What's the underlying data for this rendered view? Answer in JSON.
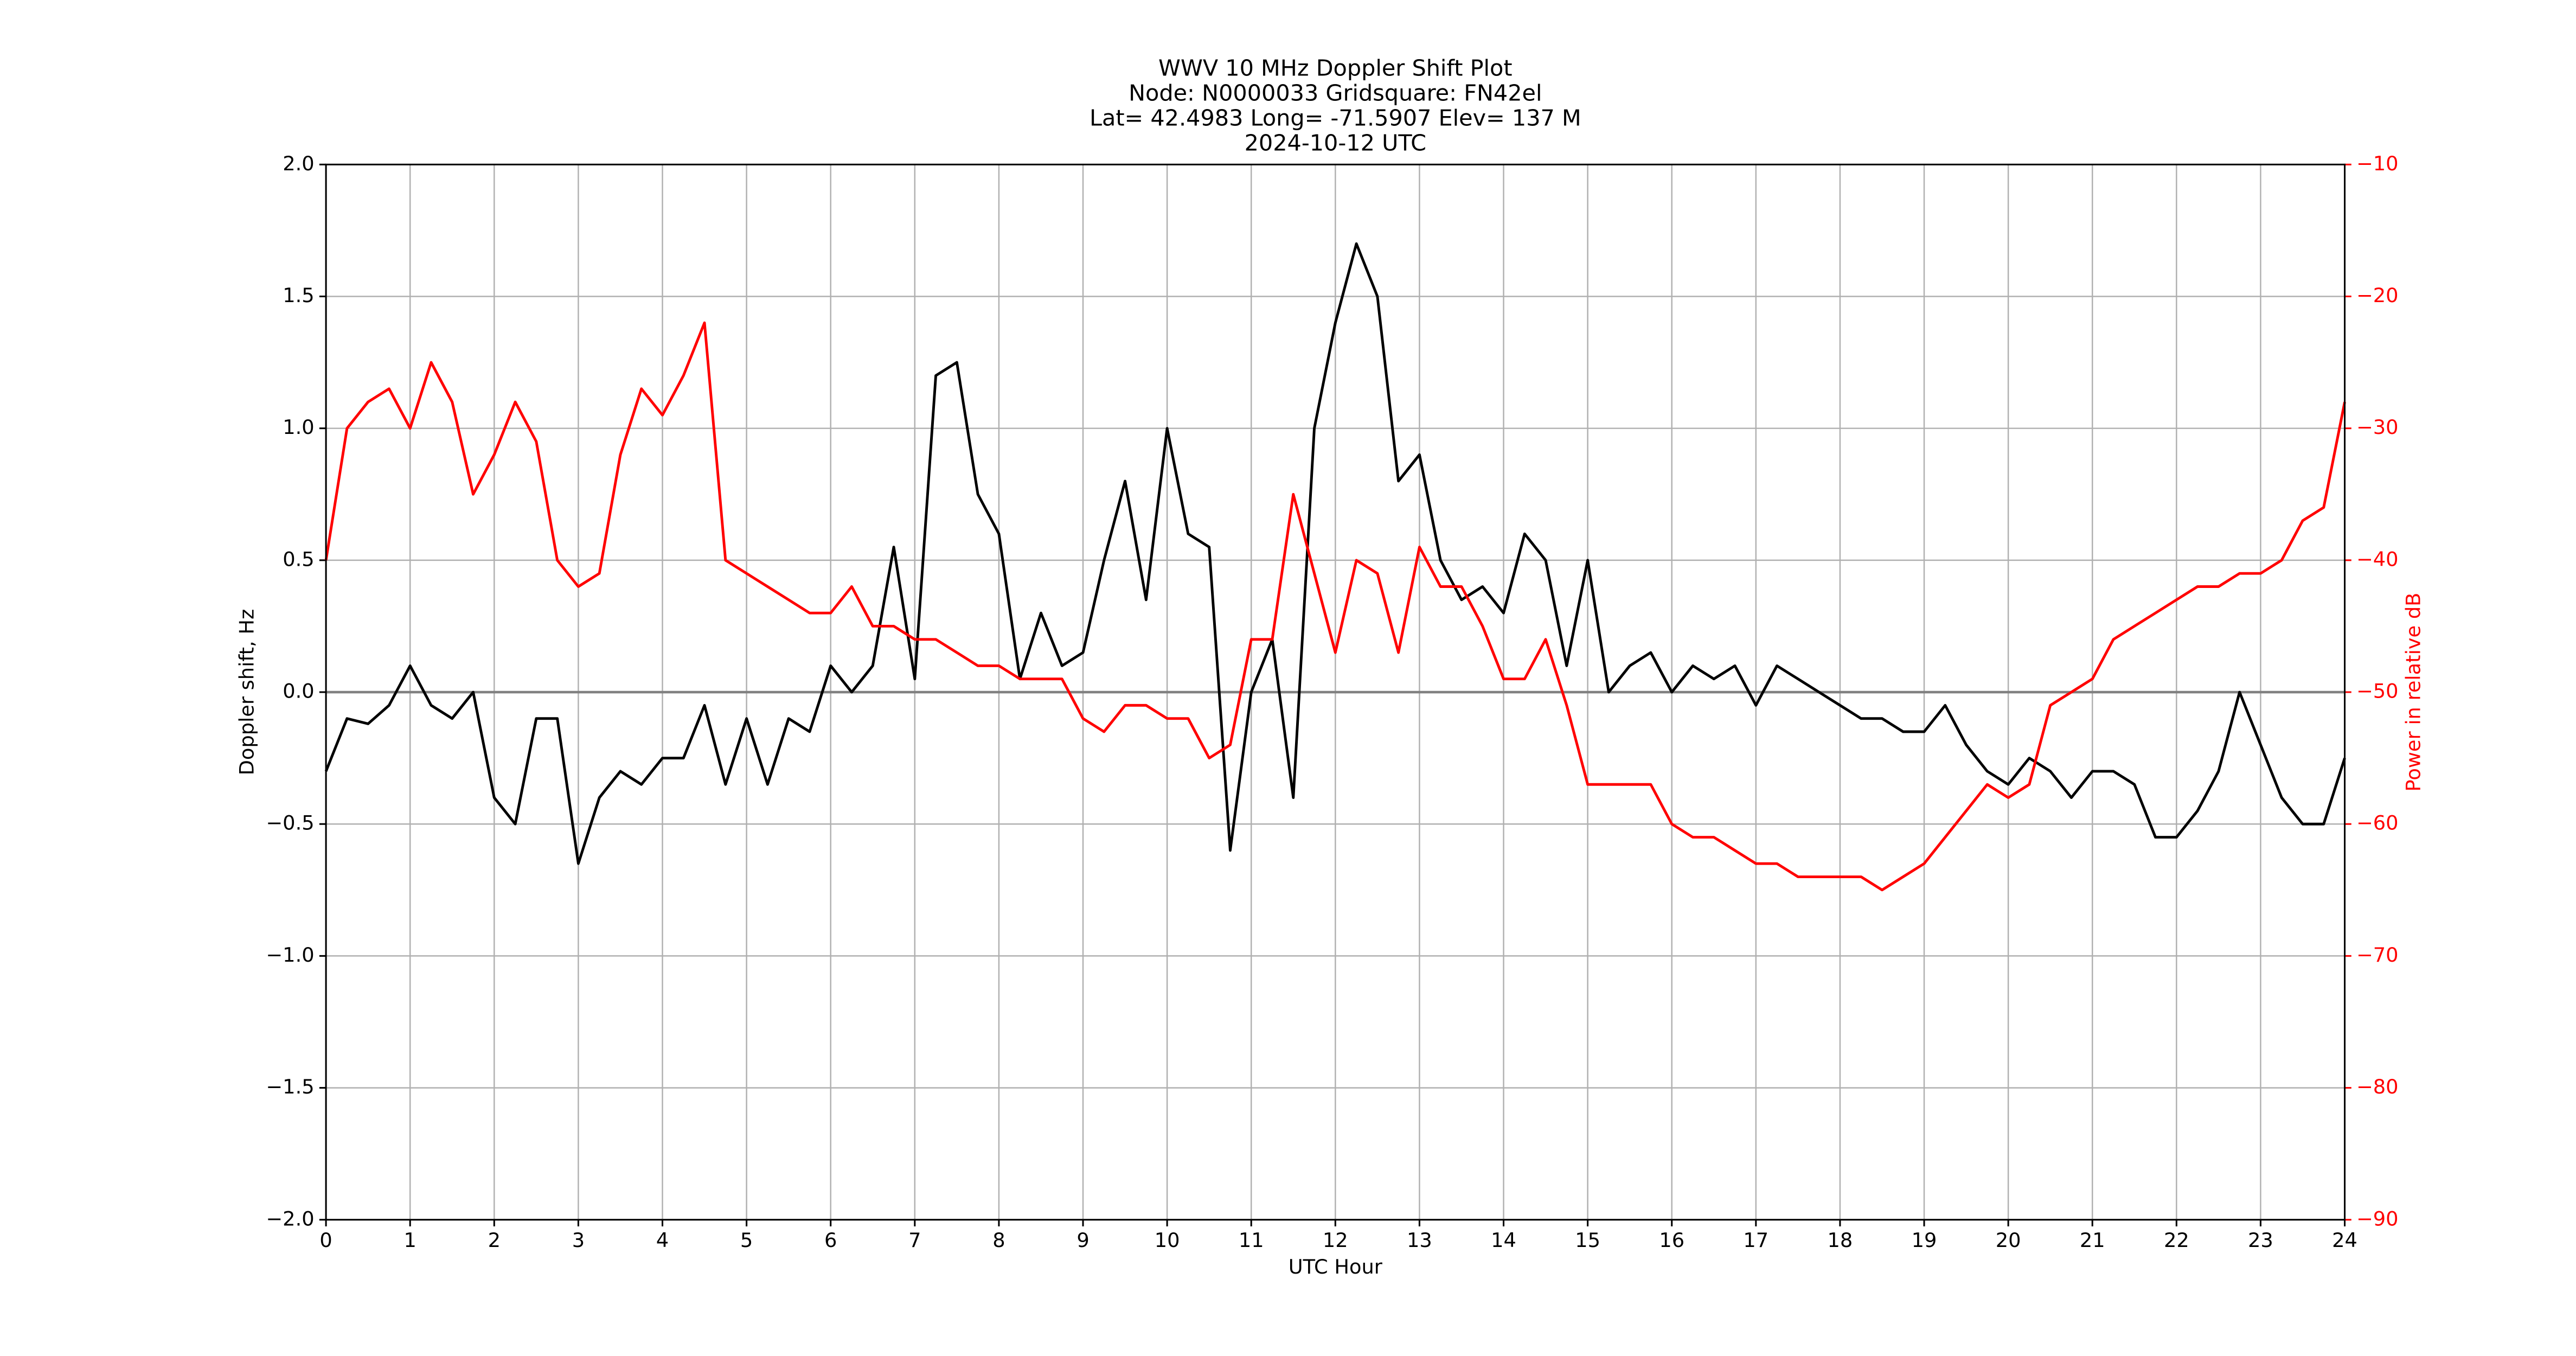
{
  "chart_data": {
    "type": "line",
    "title": [
      "WWV 10 MHz Doppler Shift Plot",
      "Node:  N0000033     Gridsquare:  FN42el",
      "Lat= 42.4983    Long= -71.5907    Elev= 137 M",
      "2024-10-12  UTC"
    ],
    "xlabel": "UTC Hour",
    "ylabel": "Doppler shift, Hz",
    "y2label": "Power in relative dB",
    "x": [
      0,
      0.25,
      0.5,
      0.75,
      1,
      1.25,
      1.5,
      1.75,
      2,
      2.25,
      2.5,
      2.75,
      3,
      3.25,
      3.5,
      3.75,
      4,
      4.25,
      4.5,
      4.75,
      5,
      5.25,
      5.5,
      5.75,
      6,
      6.25,
      6.5,
      6.75,
      7,
      7.25,
      7.5,
      7.75,
      8,
      8.25,
      8.5,
      8.75,
      9,
      9.25,
      9.5,
      9.75,
      10,
      10.25,
      10.5,
      10.75,
      11,
      11.25,
      11.5,
      11.75,
      12,
      12.25,
      12.5,
      12.75,
      13,
      13.25,
      13.5,
      13.75,
      14,
      14.25,
      14.5,
      14.75,
      15,
      15.25,
      15.5,
      15.75,
      16,
      16.25,
      16.5,
      16.75,
      17,
      17.25,
      17.5,
      17.75,
      18,
      18.25,
      18.5,
      18.75,
      19,
      19.25,
      19.5,
      19.75,
      20,
      20.25,
      20.5,
      20.75,
      21,
      21.25,
      21.5,
      21.75,
      22,
      22.25,
      22.5,
      22.75,
      23,
      23.25,
      23.5,
      23.75,
      24
    ],
    "series": [
      {
        "name": "Doppler shift",
        "color": "#000000",
        "axis": "y",
        "values": [
          -0.3,
          -0.1,
          -0.12,
          -0.05,
          0.1,
          -0.05,
          -0.1,
          0.0,
          -0.4,
          -0.5,
          -0.1,
          -0.1,
          -0.65,
          -0.4,
          -0.3,
          -0.35,
          -0.25,
          -0.25,
          -0.05,
          -0.35,
          -0.1,
          -0.35,
          -0.1,
          -0.15,
          0.1,
          0.0,
          0.1,
          0.55,
          0.05,
          1.2,
          1.25,
          0.75,
          0.6,
          0.05,
          0.3,
          0.1,
          0.15,
          0.5,
          0.8,
          0.35,
          1.0,
          0.6,
          0.55,
          -0.6,
          0.0,
          0.2,
          -0.4,
          1.0,
          1.4,
          1.7,
          1.5,
          0.8,
          0.9,
          0.5,
          0.35,
          0.4,
          0.3,
          0.6,
          0.5,
          0.1,
          0.5,
          0.0,
          0.1,
          0.15,
          0.0,
          0.1,
          0.05,
          0.1,
          -0.05,
          0.1,
          0.05,
          0.0,
          -0.05,
          -0.1,
          -0.1,
          -0.15,
          -0.15,
          -0.05,
          -0.2,
          -0.3,
          -0.35,
          -0.25,
          -0.3,
          -0.4,
          -0.3,
          -0.3,
          -0.35,
          -0.55,
          -0.55,
          -0.45,
          -0.3,
          0.0,
          -0.2,
          -0.4,
          -0.5,
          -0.5,
          -0.25
        ]
      },
      {
        "name": "Power",
        "color": "#ff0000",
        "axis": "y2",
        "values": [
          -40,
          -30,
          -28,
          -27,
          -30,
          -25,
          -28,
          -35,
          -32,
          -28,
          -31,
          -40,
          -42,
          -41,
          -32,
          -27,
          -29,
          -26,
          -22,
          -40,
          -41,
          -42,
          -43,
          -44,
          -44,
          -42,
          -45,
          -45,
          -46,
          -46,
          -47,
          -48,
          -48,
          -49,
          -49,
          -49,
          -52,
          -53,
          -51,
          -51,
          -52,
          -52,
          -55,
          -54,
          -46,
          -46,
          -35,
          -41,
          -47,
          -40,
          -41,
          -47,
          -39,
          -42,
          -42,
          -45,
          -49,
          -49,
          -46,
          -51,
          -57,
          -57,
          -57,
          -57,
          -60,
          -61,
          -61,
          -62,
          -63,
          -63,
          -64,
          -64,
          -64,
          -64,
          -65,
          -64,
          -63,
          -61,
          -59,
          -57,
          -58,
          -57,
          -51,
          -50,
          -49,
          -46,
          -45,
          -44,
          -43,
          -42,
          -42,
          -41,
          -41,
          -40,
          -37,
          -36,
          -28
        ]
      }
    ],
    "xlim": [
      0,
      24
    ],
    "xticks": [
      0,
      1,
      2,
      3,
      4,
      5,
      6,
      7,
      8,
      9,
      10,
      11,
      12,
      13,
      14,
      15,
      16,
      17,
      18,
      19,
      20,
      21,
      22,
      23,
      24
    ],
    "ylim": [
      -2,
      2
    ],
    "yticks": [
      {
        "value": -2,
        "label": "−2.0"
      },
      {
        "value": -1.5,
        "label": "−1.5"
      },
      {
        "value": -1,
        "label": "−1.0"
      },
      {
        "value": -0.5,
        "label": "−0.5"
      },
      {
        "value": 0,
        "label": "0.0"
      },
      {
        "value": 0.5,
        "label": "0.5"
      },
      {
        "value": 1,
        "label": "1.0"
      },
      {
        "value": 1.5,
        "label": "1.5"
      },
      {
        "value": 2,
        "label": "2.0"
      }
    ],
    "y2lim": [
      -90,
      -10
    ],
    "y2ticks": [
      {
        "value": -90,
        "label": "−90"
      },
      {
        "value": -80,
        "label": "−80"
      },
      {
        "value": -70,
        "label": "−70"
      },
      {
        "value": -60,
        "label": "−60"
      },
      {
        "value": -50,
        "label": "−50"
      },
      {
        "value": -40,
        "label": "−40"
      },
      {
        "value": -30,
        "label": "−30"
      },
      {
        "value": -20,
        "label": "−20"
      },
      {
        "value": -10,
        "label": "−10"
      }
    ],
    "y2color": "#ff0000",
    "grid": true,
    "hline": 0
  }
}
